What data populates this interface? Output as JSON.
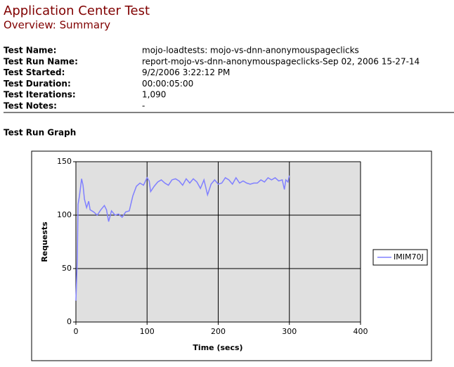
{
  "header": {
    "title": "Application Center Test",
    "subtitle": "Overview: Summary"
  },
  "fields": [
    {
      "label": "Test Name:",
      "value": "mojo-loadtests: mojo-vs-dnn-anonymouspageclicks"
    },
    {
      "label": "Test Run Name:",
      "value": "report-mojo-vs-dnn-anonymouspageclicks-Sep 02, 2006 15-27-14"
    },
    {
      "label": "Test Started:",
      "value": "9/2/2006 3:22:12 PM"
    },
    {
      "label": "Test Duration:",
      "value": "00:00:05:00"
    },
    {
      "label": "Test Iterations:",
      "value": "1,090"
    },
    {
      "label": "Test Notes:",
      "value": "-"
    }
  ],
  "section_title": "Test Run Graph",
  "chart_data": {
    "type": "line",
    "xlabel": "Time (secs)",
    "ylabel": "Requests",
    "xlim": [
      0,
      400
    ],
    "xticks": [
      0,
      100,
      200,
      300,
      400
    ],
    "ylim": [
      0,
      150
    ],
    "yticks": [
      0,
      50,
      100,
      150
    ],
    "grid": true,
    "legend": "right",
    "series": [
      {
        "name": "IMIM70J",
        "color": "#8080ff",
        "x": [
          0,
          2,
          3,
          5,
          8,
          10,
          12,
          15,
          18,
          20,
          25,
          30,
          35,
          40,
          43,
          46,
          50,
          55,
          60,
          65,
          70,
          75,
          80,
          85,
          90,
          95,
          100,
          103,
          105,
          110,
          115,
          120,
          125,
          130,
          135,
          140,
          145,
          150,
          155,
          160,
          165,
          170,
          175,
          180,
          185,
          190,
          195,
          200,
          205,
          210,
          215,
          220,
          225,
          230,
          235,
          240,
          245,
          250,
          255,
          260,
          265,
          270,
          275,
          280,
          285,
          290,
          293,
          295,
          298,
          300
        ],
        "values": [
          20,
          60,
          110,
          118,
          134,
          128,
          115,
          107,
          113,
          105,
          103,
          100,
          105,
          109,
          105,
          94,
          104,
          100,
          101,
          98,
          103,
          104,
          118,
          127,
          130,
          128,
          135,
          132,
          122,
          127,
          131,
          133,
          130,
          128,
          133,
          134,
          132,
          128,
          134,
          130,
          134,
          131,
          125,
          133,
          119,
          129,
          133,
          129,
          130,
          135,
          133,
          129,
          135,
          130,
          132,
          130,
          129,
          130,
          130,
          133,
          131,
          135,
          133,
          135,
          132,
          133,
          124,
          133,
          131,
          137
        ]
      }
    ]
  }
}
